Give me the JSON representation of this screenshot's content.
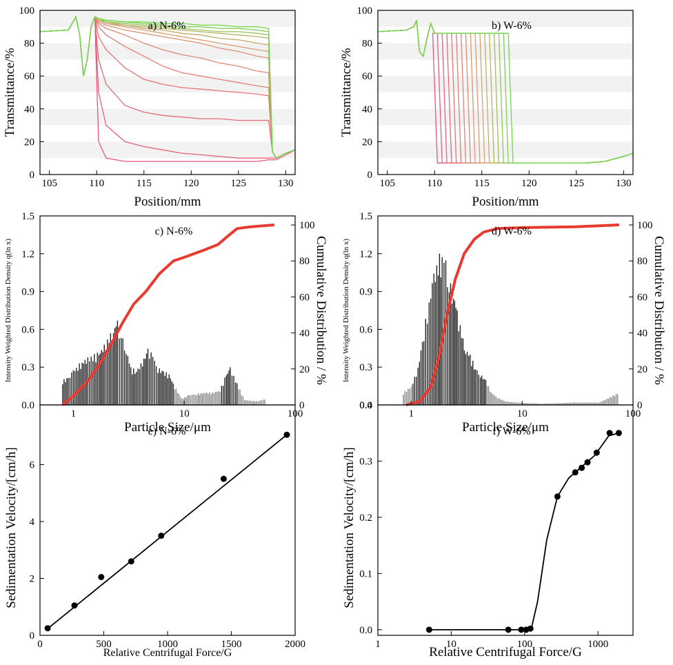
{
  "chart_data": [
    {
      "id": "a",
      "type": "line",
      "title": "a) N-6%",
      "xlabel": "Position/mm",
      "ylabel": "Transmittance/%",
      "xlim": [
        104,
        131
      ],
      "ylim": [
        0,
        100
      ],
      "xticks": [
        "105",
        "110",
        "115",
        "120",
        "125",
        "130"
      ],
      "yticks": [
        "0",
        "20",
        "40",
        "60",
        "80",
        "100"
      ],
      "series_note": "profiles shift from red (early) to green (late)",
      "x": [
        104,
        107,
        107.8,
        108.2,
        108.6,
        109,
        109.4,
        109.8,
        110.2,
        111,
        113,
        115,
        117,
        119,
        121,
        123,
        125,
        127,
        128.2,
        128.6,
        129,
        130,
        131
      ],
      "series": [
        {
          "values": [
            87,
            88,
            96,
            85,
            60,
            70,
            90,
            96,
            20,
            10,
            8,
            8,
            8,
            8,
            8,
            8,
            8,
            8,
            9,
            9,
            9,
            12,
            15
          ]
        },
        {
          "values": [
            87,
            88,
            96,
            85,
            60,
            70,
            90,
            96,
            50,
            30,
            20,
            17,
            15,
            13,
            12,
            11,
            10,
            10,
            10,
            10,
            10,
            13,
            15
          ]
        },
        {
          "values": [
            87,
            88,
            96,
            85,
            60,
            70,
            90,
            96,
            70,
            55,
            42,
            38,
            36,
            35,
            34,
            34,
            33,
            33,
            33,
            14,
            10,
            13,
            15
          ]
        },
        {
          "values": [
            87,
            88,
            96,
            85,
            60,
            70,
            90,
            96,
            84,
            76,
            65,
            58,
            55,
            53,
            52,
            51,
            50,
            49,
            48,
            14,
            10,
            13,
            15
          ]
        },
        {
          "values": [
            87,
            88,
            96,
            85,
            60,
            70,
            90,
            96,
            90,
            85,
            78,
            72,
            66,
            62,
            60,
            58,
            56,
            54,
            53,
            14,
            10,
            13,
            15
          ]
        },
        {
          "values": [
            87,
            88,
            96,
            85,
            60,
            70,
            90,
            96,
            92,
            89,
            85,
            80,
            76,
            73,
            71,
            68,
            66,
            63,
            62,
            14,
            10,
            13,
            15
          ]
        },
        {
          "values": [
            87,
            88,
            96,
            85,
            60,
            70,
            90,
            96,
            93,
            91,
            88,
            86,
            84,
            82,
            80,
            77,
            75,
            72,
            71,
            14,
            10,
            13,
            15
          ]
        },
        {
          "values": [
            87,
            88,
            96,
            85,
            60,
            70,
            90,
            96,
            94,
            92,
            90,
            88,
            86,
            84,
            82,
            80,
            78,
            76,
            75,
            14,
            10,
            13,
            15
          ]
        },
        {
          "values": [
            87,
            88,
            96,
            85,
            60,
            70,
            90,
            96,
            94,
            92,
            91,
            89,
            88,
            86,
            85,
            83,
            82,
            80,
            79,
            14,
            10,
            13,
            15
          ]
        },
        {
          "values": [
            87,
            88,
            96,
            85,
            60,
            70,
            90,
            96,
            94,
            93,
            91,
            90,
            89,
            88,
            87,
            86,
            85,
            84,
            83,
            14,
            10,
            13,
            15
          ]
        },
        {
          "values": [
            87,
            88,
            96,
            85,
            60,
            70,
            90,
            96,
            95,
            93,
            92,
            91,
            90,
            89,
            88,
            87,
            87,
            86,
            85,
            14,
            10,
            13,
            15
          ]
        },
        {
          "values": [
            87,
            88,
            96,
            85,
            60,
            70,
            90,
            96,
            95,
            94,
            93,
            92,
            91,
            90,
            90,
            89,
            89,
            88,
            87,
            14,
            10,
            13,
            15
          ]
        },
        {
          "values": [
            87,
            88,
            96,
            85,
            60,
            70,
            90,
            96,
            95,
            94,
            93,
            93,
            92,
            92,
            91,
            91,
            90,
            90,
            89,
            14,
            10,
            13,
            15
          ]
        }
      ]
    },
    {
      "id": "b",
      "type": "line",
      "title": "b) W-6%",
      "xlabel": "Position/mm",
      "ylabel": "Transmittance/%",
      "xlim": [
        104,
        131
      ],
      "ylim": [
        0,
        100
      ],
      "xticks": [
        "105",
        "110",
        "115",
        "120",
        "125",
        "130"
      ],
      "yticks": [
        "0",
        "20",
        "40",
        "60",
        "80",
        "100"
      ],
      "front_positions": [
        110.0,
        110.5,
        111.0,
        111.5,
        112.0,
        112.5,
        113.0,
        113.5,
        114.0,
        114.5,
        115.0,
        115.5,
        116.0,
        116.5,
        117.0,
        117.5,
        118.0
      ],
      "plateau": 86,
      "floor": 7
    },
    {
      "id": "c",
      "type": "bar",
      "title": "c) N-6%",
      "xlabel": "Particle Size/μm",
      "ylabel": "Intensity Weighted Distribution Density q(ln x)",
      "y2label": "Cumulative Distribution / %",
      "xlim": [
        0.5,
        100
      ],
      "xscale": "log",
      "ylim": [
        0,
        1.5
      ],
      "y2lim": [
        0,
        105
      ],
      "xticks": [
        "1",
        "10",
        "100"
      ],
      "yticks": [
        "0.0",
        "0.3",
        "0.6",
        "0.9",
        "1.2",
        "1.5"
      ],
      "y2ticks": [
        "0",
        "20",
        "40",
        "60",
        "80",
        "100"
      ],
      "density": [
        {
          "x": 0.8,
          "y": 0.2
        },
        {
          "x": 0.9,
          "y": 0.22
        },
        {
          "x": 1.0,
          "y": 0.28
        },
        {
          "x": 1.1,
          "y": 0.32
        },
        {
          "x": 1.2,
          "y": 0.35
        },
        {
          "x": 1.35,
          "y": 0.38
        },
        {
          "x": 1.5,
          "y": 0.4
        },
        {
          "x": 1.7,
          "y": 0.42
        },
        {
          "x": 1.9,
          "y": 0.48
        },
        {
          "x": 2.1,
          "y": 0.55
        },
        {
          "x": 2.3,
          "y": 0.62
        },
        {
          "x": 2.5,
          "y": 0.67
        },
        {
          "x": 2.7,
          "y": 0.58
        },
        {
          "x": 3.0,
          "y": 0.45
        },
        {
          "x": 3.3,
          "y": 0.3
        },
        {
          "x": 3.7,
          "y": 0.28
        },
        {
          "x": 4.2,
          "y": 0.35
        },
        {
          "x": 4.7,
          "y": 0.45
        },
        {
          "x": 5.2,
          "y": 0.4
        },
        {
          "x": 5.8,
          "y": 0.3
        },
        {
          "x": 6.5,
          "y": 0.27
        },
        {
          "x": 7.3,
          "y": 0.25
        },
        {
          "x": 8.2,
          "y": 0.15
        },
        {
          "x": 9.5,
          "y": 0.05
        },
        {
          "x": 11,
          "y": 0.08
        },
        {
          "x": 13,
          "y": 0.09
        },
        {
          "x": 15,
          "y": 0.1
        },
        {
          "x": 18,
          "y": 0.1
        },
        {
          "x": 21,
          "y": 0.12
        },
        {
          "x": 24,
          "y": 0.25
        },
        {
          "x": 26,
          "y": 0.3
        },
        {
          "x": 29,
          "y": 0.2
        },
        {
          "x": 35,
          "y": 0.04
        },
        {
          "x": 45,
          "y": 0.03
        },
        {
          "x": 55,
          "y": 0.05
        }
      ],
      "cumulative": [
        {
          "x": 0.8,
          "y": 0
        },
        {
          "x": 1.0,
          "y": 5
        },
        {
          "x": 1.3,
          "y": 12
        },
        {
          "x": 1.7,
          "y": 22
        },
        {
          "x": 2.2,
          "y": 34
        },
        {
          "x": 2.8,
          "y": 46
        },
        {
          "x": 3.5,
          "y": 56
        },
        {
          "x": 4.5,
          "y": 63
        },
        {
          "x": 6,
          "y": 73
        },
        {
          "x": 8,
          "y": 80
        },
        {
          "x": 10,
          "y": 82
        },
        {
          "x": 15,
          "y": 86
        },
        {
          "x": 20,
          "y": 89
        },
        {
          "x": 25,
          "y": 94
        },
        {
          "x": 30,
          "y": 98
        },
        {
          "x": 40,
          "y": 99
        },
        {
          "x": 65,
          "y": 100
        }
      ]
    },
    {
      "id": "d",
      "type": "bar",
      "title": "d) W-6%",
      "xlabel": "Particle Size/μm",
      "ylabel": "Intensity Weighted Distribution Density q(ln x)",
      "y2label": "Cumulative Distribution / %",
      "xlim": [
        0.5,
        100
      ],
      "xscale": "log",
      "ylim": [
        0,
        1.5
      ],
      "y2lim": [
        0,
        105
      ],
      "xticks": [
        "1",
        "10",
        "100"
      ],
      "yticks": [
        "0.0",
        "0.3",
        "0.6",
        "0.9",
        "1.2",
        "1.5"
      ],
      "y2ticks": [
        "0",
        "20",
        "40",
        "60",
        "80",
        "100"
      ],
      "density": [
        {
          "x": 0.85,
          "y": 0.1
        },
        {
          "x": 1.0,
          "y": 0.15
        },
        {
          "x": 1.15,
          "y": 0.3
        },
        {
          "x": 1.3,
          "y": 0.6
        },
        {
          "x": 1.45,
          "y": 0.85
        },
        {
          "x": 1.6,
          "y": 1.05
        },
        {
          "x": 1.75,
          "y": 1.18
        },
        {
          "x": 1.9,
          "y": 1.25
        },
        {
          "x": 2.05,
          "y": 1.15
        },
        {
          "x": 2.2,
          "y": 1.0
        },
        {
          "x": 2.4,
          "y": 0.92
        },
        {
          "x": 2.6,
          "y": 0.75
        },
        {
          "x": 2.85,
          "y": 0.58
        },
        {
          "x": 3.1,
          "y": 0.45
        },
        {
          "x": 3.4,
          "y": 0.4
        },
        {
          "x": 3.8,
          "y": 0.3
        },
        {
          "x": 4.2,
          "y": 0.25
        },
        {
          "x": 4.7,
          "y": 0.2
        },
        {
          "x": 5.3,
          "y": 0.1
        },
        {
          "x": 6,
          "y": 0.06
        },
        {
          "x": 7,
          "y": 0.03
        },
        {
          "x": 9,
          "y": 0.02
        },
        {
          "x": 15,
          "y": 0.01
        },
        {
          "x": 30,
          "y": 0.02
        },
        {
          "x": 50,
          "y": 0.02
        },
        {
          "x": 75,
          "y": 0.1
        }
      ],
      "cumulative": [
        {
          "x": 0.9,
          "y": 0
        },
        {
          "x": 1.2,
          "y": 2
        },
        {
          "x": 1.5,
          "y": 10
        },
        {
          "x": 1.8,
          "y": 28
        },
        {
          "x": 2.1,
          "y": 50
        },
        {
          "x": 2.5,
          "y": 70
        },
        {
          "x": 3.0,
          "y": 84
        },
        {
          "x": 3.7,
          "y": 92
        },
        {
          "x": 4.5,
          "y": 96
        },
        {
          "x": 6,
          "y": 98
        },
        {
          "x": 10,
          "y": 98.5
        },
        {
          "x": 30,
          "y": 99
        },
        {
          "x": 75,
          "y": 100
        }
      ]
    },
    {
      "id": "e",
      "type": "scatter",
      "title": "e) N-6%",
      "xlabel": "Relative Centrifugal Force/G",
      "ylabel": "Sedimentation Velocity/[cm/h]",
      "xlim": [
        0,
        2000
      ],
      "ylim": [
        0,
        8
      ],
      "xticks": [
        "0",
        "500",
        "1000",
        "1500",
        "2000"
      ],
      "yticks": [
        "0",
        "2",
        "4",
        "6"
      ],
      "points": [
        {
          "x": 60,
          "y": 0.25
        },
        {
          "x": 270,
          "y": 1.05
        },
        {
          "x": 480,
          "y": 2.05
        },
        {
          "x": 715,
          "y": 2.6
        },
        {
          "x": 950,
          "y": 3.5
        },
        {
          "x": 1440,
          "y": 5.5
        },
        {
          "x": 1935,
          "y": 7.05
        }
      ],
      "fit": [
        {
          "x": 50,
          "y": 0.2
        },
        {
          "x": 1935,
          "y": 7.05
        }
      ]
    },
    {
      "id": "f",
      "type": "scatter",
      "title": "f) W-6%",
      "xlabel": "Relative Centrifugal Force/G",
      "ylabel": "Sedimentation Velocity/[cm/h]",
      "xlim": [
        1,
        3000
      ],
      "xscale": "log",
      "ylim": [
        -0.01,
        0.4
      ],
      "xticks": [
        "1",
        "10",
        "100",
        "1000"
      ],
      "yticks": [
        "0.0",
        "0.1",
        "0.2",
        "0.3",
        "0.4"
      ],
      "points": [
        {
          "x": 5,
          "y": 0
        },
        {
          "x": 60,
          "y": 0
        },
        {
          "x": 90,
          "y": 0
        },
        {
          "x": 105,
          "y": 0
        },
        {
          "x": 120,
          "y": 0.002
        },
        {
          "x": 280,
          "y": 0.237
        },
        {
          "x": 490,
          "y": 0.28
        },
        {
          "x": 600,
          "y": 0.288
        },
        {
          "x": 720,
          "y": 0.298
        },
        {
          "x": 960,
          "y": 0.315
        },
        {
          "x": 1440,
          "y": 0.35
        },
        {
          "x": 1920,
          "y": 0.35
        }
      ],
      "fit": [
        {
          "x": 5,
          "y": 0
        },
        {
          "x": 100,
          "y": 0
        },
        {
          "x": 125,
          "y": 0.005
        },
        {
          "x": 150,
          "y": 0.05
        },
        {
          "x": 200,
          "y": 0.16
        },
        {
          "x": 280,
          "y": 0.237
        },
        {
          "x": 400,
          "y": 0.27
        },
        {
          "x": 600,
          "y": 0.29
        },
        {
          "x": 900,
          "y": 0.31
        },
        {
          "x": 1400,
          "y": 0.345
        },
        {
          "x": 1920,
          "y": 0.35
        }
      ]
    }
  ]
}
